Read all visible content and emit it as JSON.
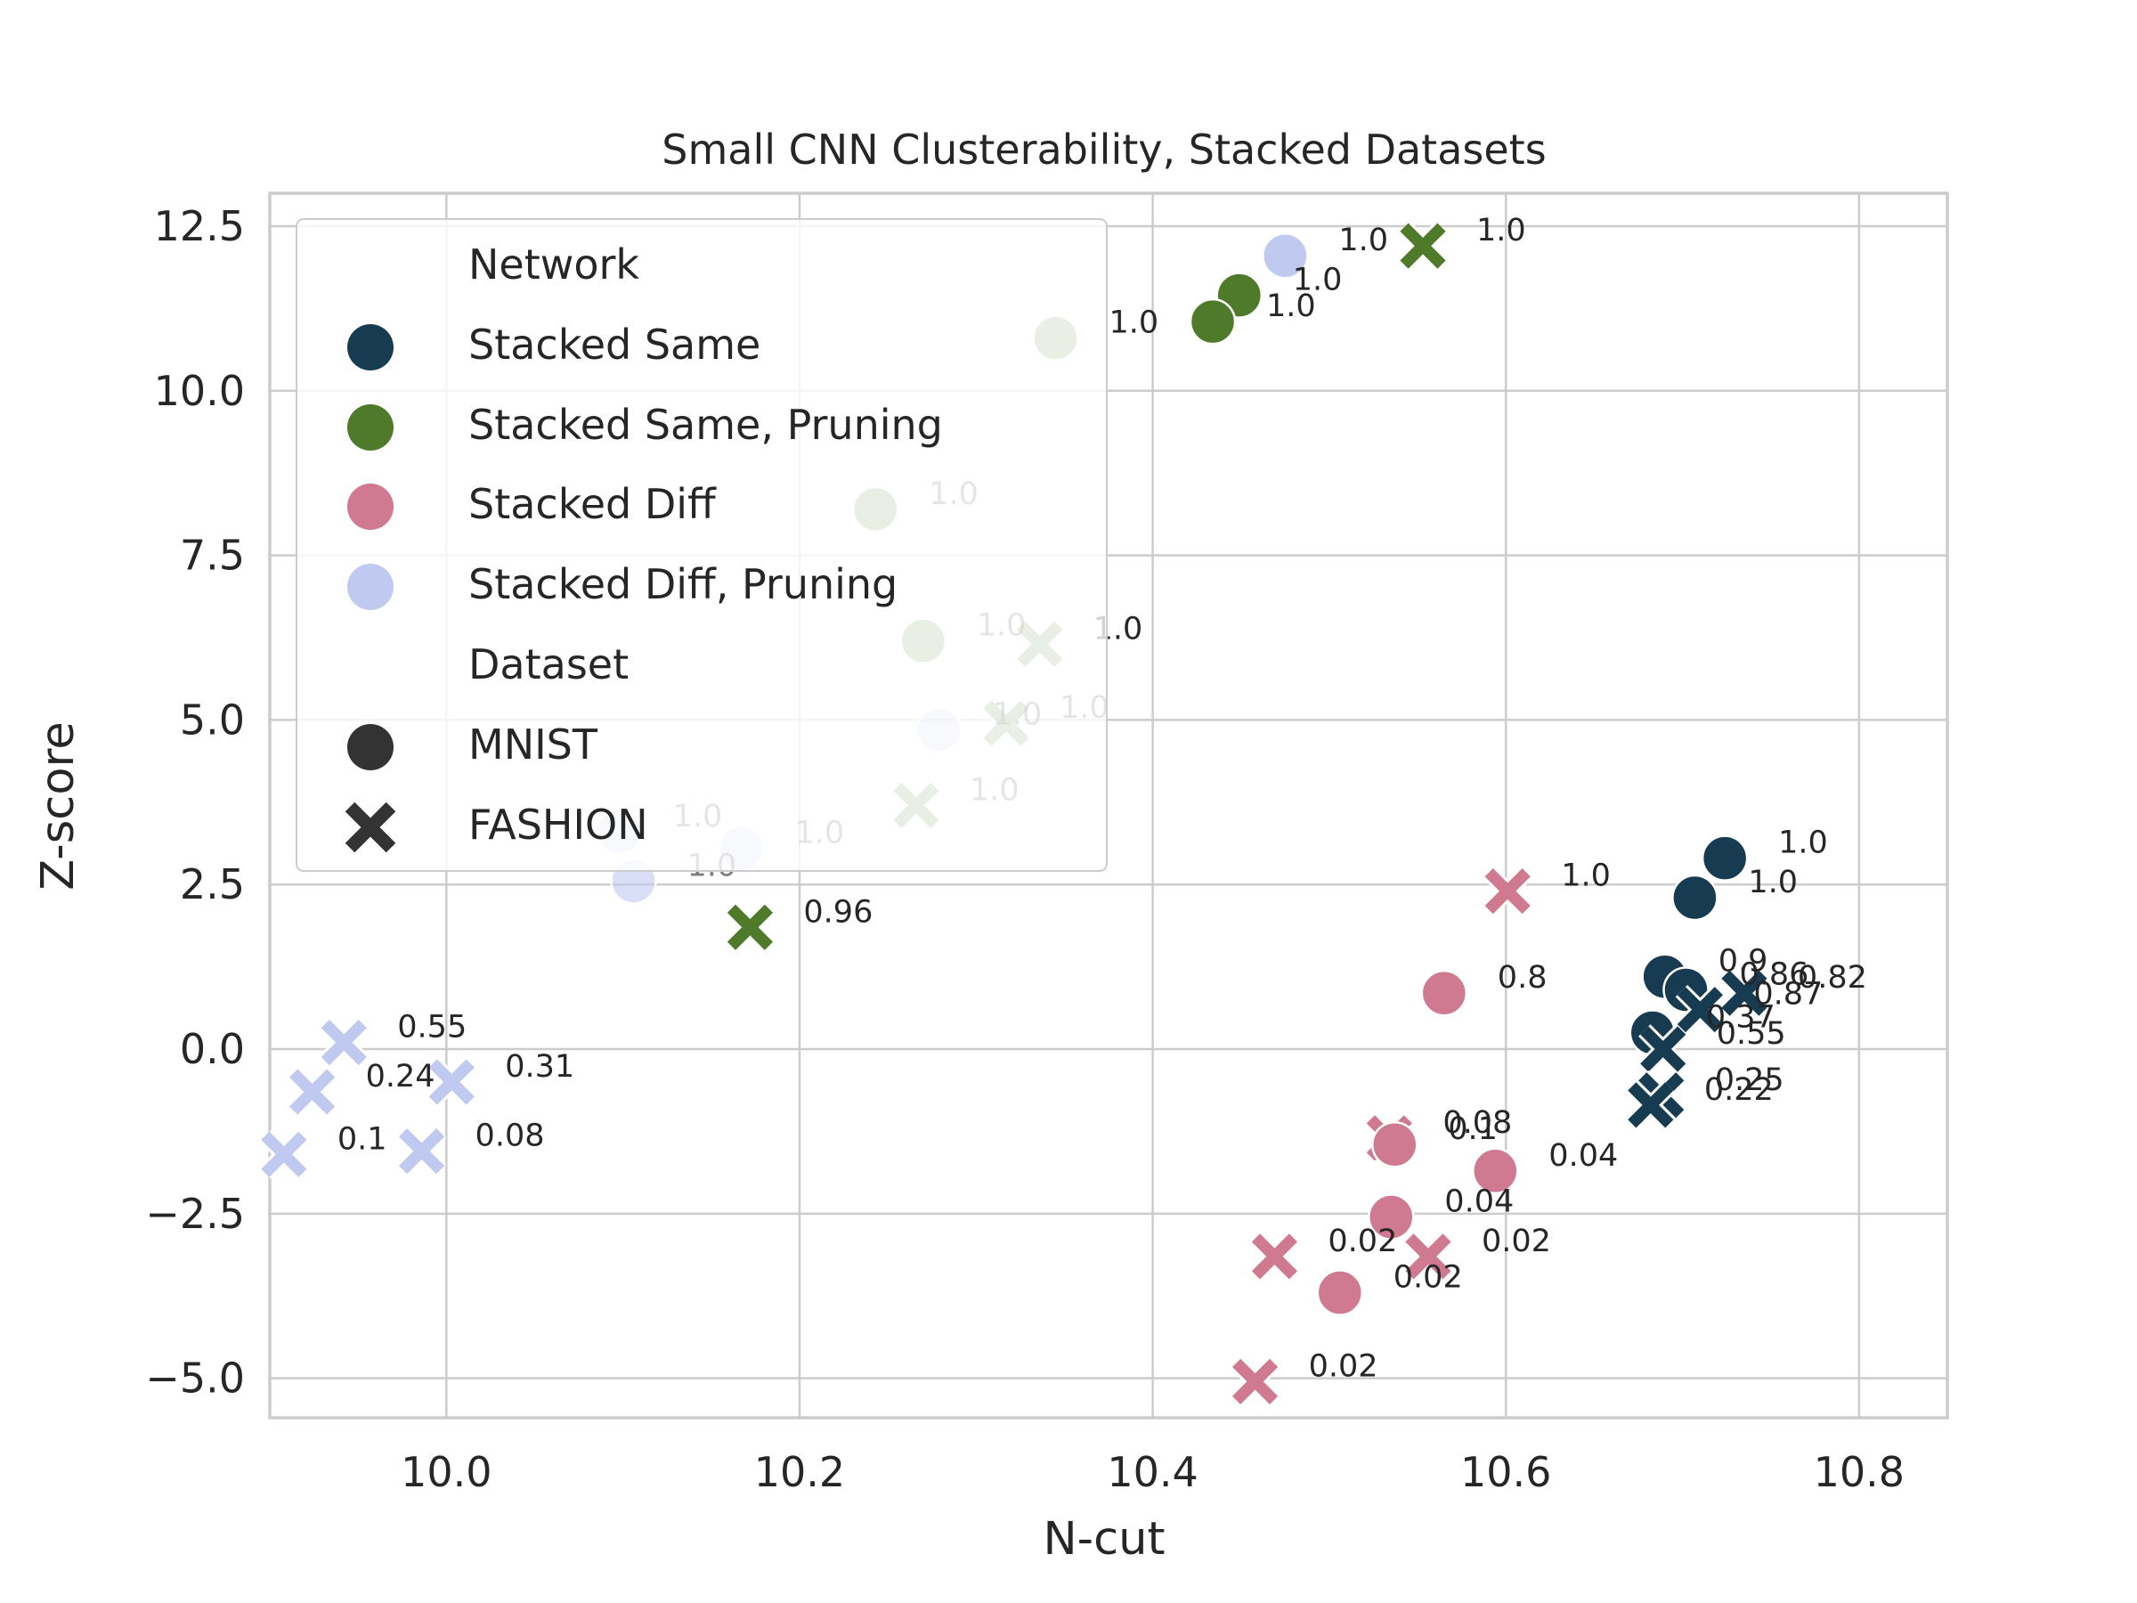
{
  "chart_data": {
    "type": "scatter",
    "title": "Small CNN Clusterability, Stacked Datasets",
    "xlabel": "N-cut",
    "ylabel": "Z-score",
    "xlim": [
      9.9,
      10.85
    ],
    "ylim": [
      -5.6,
      13.0
    ],
    "xticks": [
      {
        "value": 10.0,
        "label": "10.0"
      },
      {
        "value": 10.2,
        "label": "10.2"
      },
      {
        "value": 10.4,
        "label": "10.4"
      },
      {
        "value": 10.6,
        "label": "10.6"
      },
      {
        "value": 10.8,
        "label": "10.8"
      }
    ],
    "yticks": [
      {
        "value": -5.0,
        "label": "−5.0"
      },
      {
        "value": -2.5,
        "label": "−2.5"
      },
      {
        "value": 0.0,
        "label": "0.0"
      },
      {
        "value": 2.5,
        "label": "2.5"
      },
      {
        "value": 5.0,
        "label": "5.0"
      },
      {
        "value": 7.5,
        "label": "7.5"
      },
      {
        "value": 10.0,
        "label": "10.0"
      },
      {
        "value": 12.5,
        "label": "12.5"
      }
    ],
    "grid": true,
    "legend": {
      "placement": "top-left",
      "hue_title": "Network",
      "style_title": "Dataset",
      "hue_entries": [
        {
          "label": "Stacked Same",
          "color": "#173b50"
        },
        {
          "label": "Stacked Same, Pruning",
          "color": "#4f7a2a"
        },
        {
          "label": "Stacked Diff",
          "color": "#d07a92"
        },
        {
          "label": "Stacked Diff, Pruning",
          "color": "#c0c9f0"
        }
      ],
      "style_entries": [
        {
          "label": "MNIST",
          "marker": "circle"
        },
        {
          "label": "FASHION",
          "marker": "x"
        }
      ]
    },
    "points": [
      {
        "series": "Stacked Same, Pruning",
        "dataset": "FASHION",
        "x": 10.553,
        "y": 12.2,
        "label": "1.0",
        "alpha": 1.0,
        "label_alpha": 1.0
      },
      {
        "series": "Stacked Diff, Pruning",
        "dataset": "MNIST",
        "x": 10.475,
        "y": 12.05,
        "label": "1.0",
        "alpha": 1.0,
        "label_alpha": 1.0
      },
      {
        "series": "Stacked Same, Pruning",
        "dataset": "MNIST",
        "x": 10.449,
        "y": 11.45,
        "label": "1.0",
        "alpha": 1.0,
        "label_alpha": 1.0
      },
      {
        "series": "Stacked Same, Pruning",
        "dataset": "MNIST",
        "x": 10.434,
        "y": 11.05,
        "label": "1.0",
        "alpha": 1.0,
        "label_alpha": 1.0
      },
      {
        "series": "Stacked Same, Pruning",
        "dataset": "MNIST",
        "x": 10.345,
        "y": 10.8,
        "label": "1.0",
        "alpha": 0.6,
        "label_alpha": 1.0
      },
      {
        "series": "Stacked Same, Pruning",
        "dataset": "MNIST",
        "x": 10.243,
        "y": 8.2,
        "label": "1.0",
        "alpha": 0.6,
        "label_alpha": 0.6
      },
      {
        "series": "Stacked Same, Pruning",
        "dataset": "MNIST",
        "x": 10.27,
        "y": 6.2,
        "label": "1.0",
        "alpha": 0.6,
        "label_alpha": 0.6
      },
      {
        "series": "Stacked Same, Pruning",
        "dataset": "FASHION",
        "x": 10.336,
        "y": 6.15,
        "label": "1.0",
        "alpha": 0.6,
        "label_alpha": 1.0
      },
      {
        "series": "Stacked Same, Pruning",
        "dataset": "FASHION",
        "x": 10.317,
        "y": 4.95,
        "label": "1.0",
        "alpha": 0.6,
        "label_alpha": 0.6
      },
      {
        "series": "Stacked Diff, Pruning",
        "dataset": "MNIST",
        "x": 10.279,
        "y": 4.85,
        "label": "1.0",
        "alpha": 0.6,
        "label_alpha": 0.6
      },
      {
        "series": "Stacked Same, Pruning",
        "dataset": "FASHION",
        "x": 10.266,
        "y": 3.7,
        "label": "1.0",
        "alpha": 0.6,
        "label_alpha": 0.6
      },
      {
        "series": "Stacked Diff, Pruning",
        "dataset": "MNIST",
        "x": 10.098,
        "y": 3.3,
        "label": "1.0",
        "alpha": 0.6,
        "label_alpha": 0.6
      },
      {
        "series": "Stacked Diff, Pruning",
        "dataset": "MNIST",
        "x": 10.167,
        "y": 3.05,
        "label": "1.0",
        "alpha": 0.6,
        "label_alpha": 0.6
      },
      {
        "series": "Stacked Diff, Pruning",
        "dataset": "MNIST",
        "x": 10.106,
        "y": 2.55,
        "label": "1.0",
        "alpha": 0.6,
        "label_alpha": 0.6
      },
      {
        "series": "Stacked Same, Pruning",
        "dataset": "FASHION",
        "x": 10.172,
        "y": 1.85,
        "label": "0.96",
        "alpha": 1.0,
        "label_alpha": 1.0
      },
      {
        "series": "Stacked Same",
        "dataset": "MNIST",
        "x": 10.724,
        "y": 2.9,
        "label": "1.0",
        "alpha": 1.0,
        "label_alpha": 1.0
      },
      {
        "series": "Stacked Same",
        "dataset": "MNIST",
        "x": 10.707,
        "y": 2.3,
        "label": "1.0",
        "alpha": 1.0,
        "label_alpha": 1.0
      },
      {
        "series": "Stacked Same",
        "dataset": "MNIST",
        "x": 10.69,
        "y": 1.1,
        "label": "0.9",
        "alpha": 1.0,
        "label_alpha": 1.0
      },
      {
        "series": "Stacked Same",
        "dataset": "MNIST",
        "x": 10.702,
        "y": 0.9,
        "label": "0.86",
        "alpha": 1.0,
        "label_alpha": 1.0
      },
      {
        "series": "Stacked Same",
        "dataset": "FASHION",
        "x": 10.735,
        "y": 0.85,
        "label": "0.82",
        "alpha": 1.0,
        "label_alpha": 1.0
      },
      {
        "series": "Stacked Same",
        "dataset": "FASHION",
        "x": 10.71,
        "y": 0.6,
        "label": "0.87",
        "alpha": 1.0,
        "label_alpha": 1.0
      },
      {
        "series": "Stacked Same",
        "dataset": "MNIST",
        "x": 10.683,
        "y": 0.25,
        "label": "0.37",
        "alpha": 1.0,
        "label_alpha": 1.0
      },
      {
        "series": "Stacked Same",
        "dataset": "FASHION",
        "x": 10.689,
        "y": 0.0,
        "label": "0.55",
        "alpha": 1.0,
        "label_alpha": 1.0
      },
      {
        "series": "Stacked Same",
        "dataset": "FASHION",
        "x": 10.688,
        "y": -0.7,
        "label": "0.25",
        "alpha": 1.0,
        "label_alpha": 1.0
      },
      {
        "series": "Stacked Same",
        "dataset": "FASHION",
        "x": 10.682,
        "y": -0.85,
        "label": "0.22",
        "alpha": 1.0,
        "label_alpha": 1.0
      },
      {
        "series": "Stacked Diff",
        "dataset": "FASHION",
        "x": 10.601,
        "y": 2.4,
        "label": "1.0",
        "alpha": 1.0,
        "label_alpha": 1.0
      },
      {
        "series": "Stacked Diff",
        "dataset": "MNIST",
        "x": 10.565,
        "y": 0.85,
        "label": "0.8",
        "alpha": 1.0,
        "label_alpha": 1.0
      },
      {
        "series": "Stacked Diff",
        "dataset": "FASHION",
        "x": 10.534,
        "y": -1.35,
        "label": "0.08",
        "alpha": 1.0,
        "label_alpha": 1.0
      },
      {
        "series": "Stacked Diff",
        "dataset": "MNIST",
        "x": 10.537,
        "y": -1.45,
        "label": "0.1",
        "alpha": 1.0,
        "label_alpha": 1.0
      },
      {
        "series": "Stacked Diff",
        "dataset": "MNIST",
        "x": 10.594,
        "y": -1.85,
        "label": "0.04",
        "alpha": 1.0,
        "label_alpha": 1.0
      },
      {
        "series": "Stacked Diff",
        "dataset": "MNIST",
        "x": 10.535,
        "y": -2.55,
        "label": "0.04",
        "alpha": 1.0,
        "label_alpha": 1.0
      },
      {
        "series": "Stacked Diff",
        "dataset": "FASHION",
        "x": 10.469,
        "y": -3.15,
        "label": "0.02",
        "alpha": 1.0,
        "label_alpha": 1.0
      },
      {
        "series": "Stacked Diff",
        "dataset": "FASHION",
        "x": 10.556,
        "y": -3.15,
        "label": "0.02",
        "alpha": 1.0,
        "label_alpha": 1.0
      },
      {
        "series": "Stacked Diff",
        "dataset": "MNIST",
        "x": 10.506,
        "y": -3.7,
        "label": "0.02",
        "alpha": 1.0,
        "label_alpha": 1.0
      },
      {
        "series": "Stacked Diff",
        "dataset": "FASHION",
        "x": 10.458,
        "y": -5.05,
        "label": "0.02",
        "alpha": 1.0,
        "label_alpha": 1.0
      },
      {
        "series": "Stacked Diff, Pruning",
        "dataset": "FASHION",
        "x": 9.942,
        "y": 0.1,
        "label": "0.55",
        "alpha": 1.0,
        "label_alpha": 1.0
      },
      {
        "series": "Stacked Diff, Pruning",
        "dataset": "FASHION",
        "x": 9.924,
        "y": -0.65,
        "label": "0.24",
        "alpha": 1.0,
        "label_alpha": 1.0
      },
      {
        "series": "Stacked Diff, Pruning",
        "dataset": "FASHION",
        "x": 10.003,
        "y": -0.5,
        "label": "0.31",
        "alpha": 1.0,
        "label_alpha": 1.0
      },
      {
        "series": "Stacked Diff, Pruning",
        "dataset": "FASHION",
        "x": 9.908,
        "y": -1.6,
        "label": "0.1",
        "alpha": 1.0,
        "label_alpha": 1.0
      },
      {
        "series": "Stacked Diff, Pruning",
        "dataset": "FASHION",
        "x": 9.986,
        "y": -1.55,
        "label": "0.08",
        "alpha": 1.0,
        "label_alpha": 1.0
      }
    ]
  }
}
